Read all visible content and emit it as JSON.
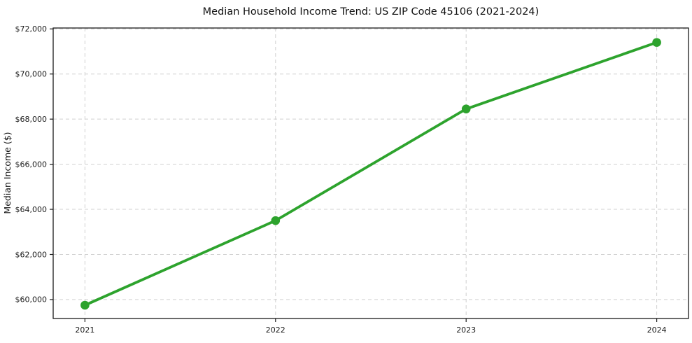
{
  "figure": {
    "background": "#ffffff"
  },
  "chart_data": {
    "type": "line",
    "title": "Median Household Income Trend: US ZIP Code 45106 (2021-2024)",
    "xlabel": "",
    "ylabel": "Median Income ($)",
    "x": [
      2021,
      2022,
      2023,
      2024
    ],
    "x_tick_labels": [
      "2021",
      "2022",
      "2023",
      "2024"
    ],
    "y_ticks": [
      60000,
      62000,
      64000,
      66000,
      68000,
      70000,
      72000
    ],
    "y_tick_labels": [
      "$60,000",
      "$62,000",
      "$64,000",
      "$66,000",
      "$68,000",
      "$70,000",
      "$72,000"
    ],
    "series": [
      {
        "name": "Median Household Income",
        "values": [
          59750,
          63500,
          68450,
          71400
        ]
      }
    ],
    "ylim": [
      59160,
      72040
    ],
    "x_margin_frac": 0.05,
    "grid": {
      "show": true,
      "style": "dashed",
      "color": "#d0d0d0"
    },
    "legend": "none",
    "line_color": "#2da32d",
    "marker": "circle",
    "axis_color": "#1a1a1a",
    "text_color": "#1a1a1a"
  }
}
